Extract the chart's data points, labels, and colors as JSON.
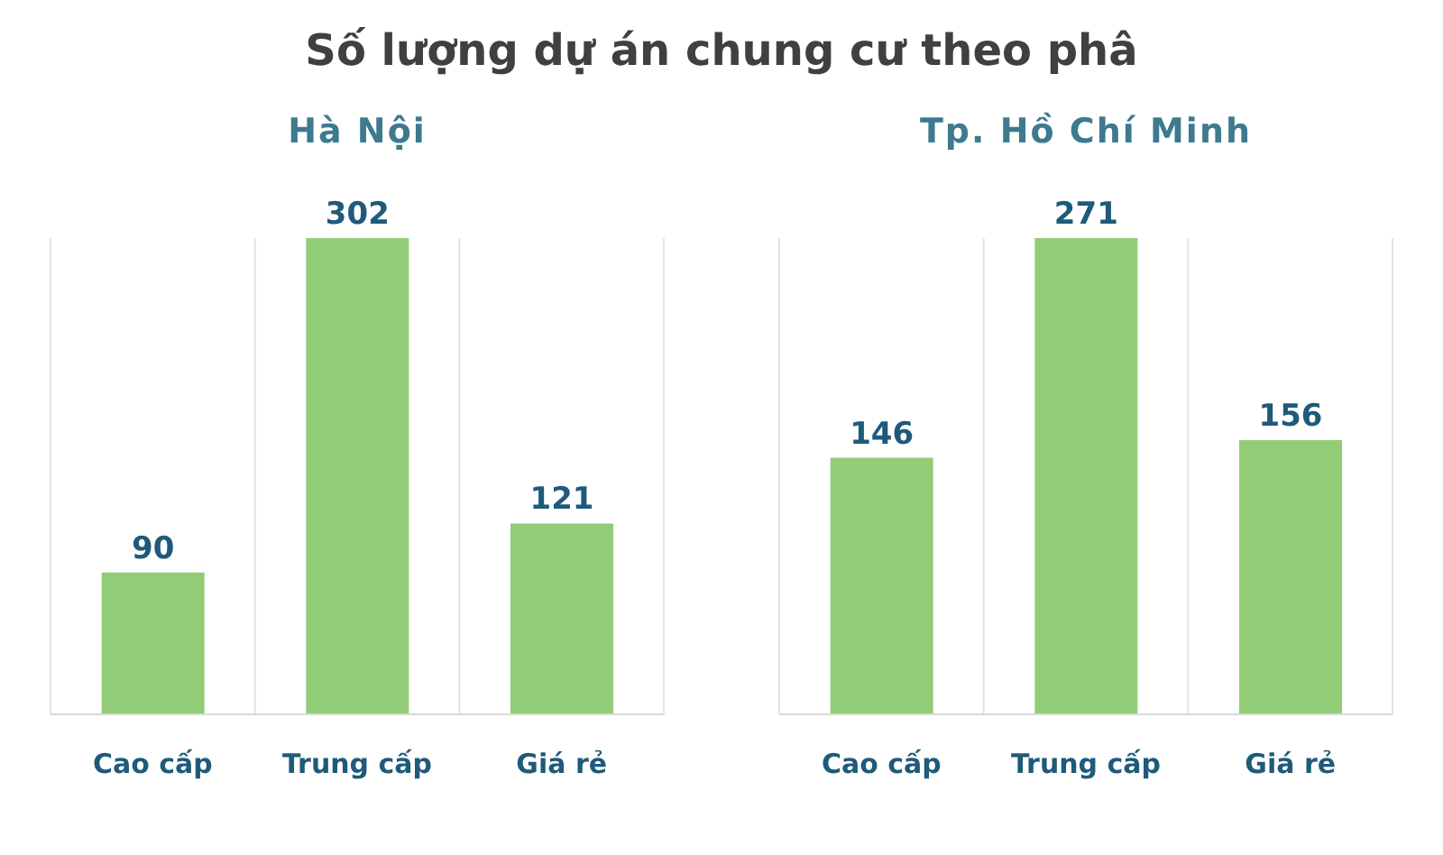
{
  "chart_data": [
    {
      "type": "other",
      "title": "Số lượng dự án chung cư theo phâ"
    },
    {
      "type": "bar",
      "title": "Hà Nội",
      "categories": [
        "Cao cấp",
        "Trung cấp",
        "Giá rẻ"
      ],
      "values": [
        90,
        302,
        121
      ],
      "color": "#92cc76",
      "data_labels": true,
      "grid": "x"
    },
    {
      "type": "bar",
      "title": "Tp. Hồ Chí Minh",
      "categories": [
        "Cao cấp",
        "Trung cấp",
        "Giá rẻ"
      ],
      "values": [
        146,
        271,
        156
      ],
      "color": "#92cc76",
      "data_labels": true,
      "grid": "x"
    }
  ]
}
